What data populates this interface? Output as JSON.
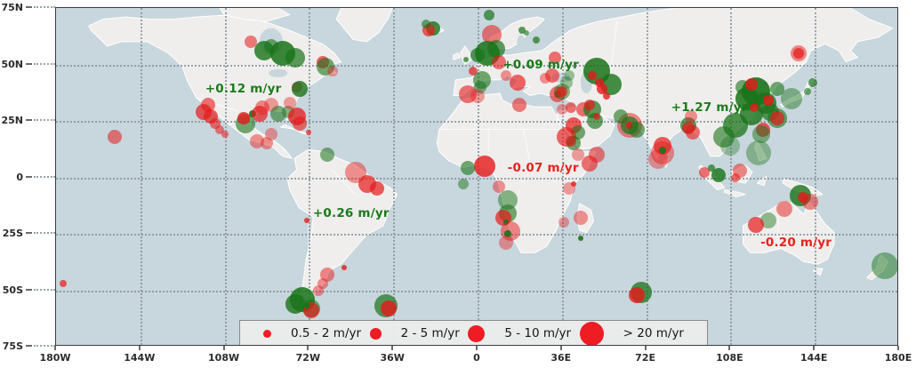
{
  "chart_data": {
    "type": "scatter",
    "subtype": "bubble-map",
    "projection": "world equirectangular",
    "xlim": [
      -180,
      180
    ],
    "ylim": [
      -75,
      75
    ],
    "grid": "dotted",
    "x_ticks": [
      {
        "label": "180W",
        "lon": -180
      },
      {
        "label": "144W",
        "lon": -144
      },
      {
        "label": "108W",
        "lon": -108
      },
      {
        "label": "72W",
        "lon": -72
      },
      {
        "label": "36W",
        "lon": -36
      },
      {
        "label": "0",
        "lon": 0
      },
      {
        "label": "36E",
        "lon": 36
      },
      {
        "label": "72E",
        "lon": 72
      },
      {
        "label": "108E",
        "lon": 108
      },
      {
        "label": "144E",
        "lon": 144
      },
      {
        "label": "180E",
        "lon": 180
      }
    ],
    "y_ticks": [
      {
        "label": "75N",
        "lat": 75
      },
      {
        "label": "50N",
        "lat": 50
      },
      {
        "label": "25N",
        "lat": 25
      },
      {
        "label": "0",
        "lat": 0
      },
      {
        "label": "25S",
        "lat": -25
      },
      {
        "label": "50S",
        "lat": -50
      },
      {
        "label": "75S",
        "lat": -75
      }
    ],
    "legend": {
      "position": "bottom center",
      "dot_color": "#ee1c23",
      "entries": [
        {
          "label": "0.5 - 2 m/yr",
          "d": 9
        },
        {
          "label": "2 - 5 m/yr",
          "d": 13
        },
        {
          "label": "5 - 10 m/yr",
          "d": 19
        },
        {
          "label": "> 20 m/yr",
          "d": 27
        }
      ]
    },
    "annotations": [
      {
        "text": "+0.12 m/yr",
        "lon": -100,
        "lat": 39,
        "color": "green"
      },
      {
        "text": "+0.09 m/yr",
        "lon": 27,
        "lat": 50,
        "color": "green"
      },
      {
        "text": "+1.27 m/yr",
        "lon": 99,
        "lat": 31,
        "color": "green"
      },
      {
        "text": "-0.07 m/yr",
        "lon": 28,
        "lat": 4,
        "color": "red"
      },
      {
        "text": "+0.26 m/yr",
        "lon": -54,
        "lat": -16,
        "color": "green"
      },
      {
        "text": "-0.20 m/yr",
        "lon": 136,
        "lat": -29,
        "color": "red"
      }
    ],
    "annotation_colors": {
      "green": "#1b7a1b",
      "red": "#e8231f"
    },
    "point_colors": {
      "r": "230,25,25",
      "g": "25,115,25"
    },
    "points_format": [
      "lon",
      "lat",
      "radius_px",
      "color (r=red decline, g=green rise)",
      "opacity"
    ],
    "points": [
      [
        -97,
        60,
        7,
        "r",
        0.55
      ],
      [
        -91,
        56,
        11,
        "g",
        0.8
      ],
      [
        -83,
        55,
        14,
        "g",
        0.85
      ],
      [
        -78,
        53,
        11,
        "g",
        0.7
      ],
      [
        -88,
        58,
        8,
        "g",
        0.6
      ],
      [
        -66,
        51,
        7,
        "r",
        0.65
      ],
      [
        -65,
        49,
        10,
        "g",
        0.6
      ],
      [
        -62,
        47,
        6,
        "r",
        0.4
      ],
      [
        -77,
        40,
        6,
        "r",
        0.6
      ],
      [
        -76,
        39,
        9,
        "g",
        0.8
      ],
      [
        -115,
        32,
        8,
        "r",
        0.6
      ],
      [
        -117,
        29,
        9,
        "r",
        0.7
      ],
      [
        -114,
        27,
        8,
        "r",
        0.7
      ],
      [
        -112,
        24,
        6,
        "r",
        0.6
      ],
      [
        -110,
        21,
        5,
        "r",
        0.55
      ],
      [
        -108,
        19,
        4,
        "r",
        0.55
      ],
      [
        -96,
        28,
        4,
        "g",
        0.9
      ],
      [
        -99,
        24,
        11,
        "g",
        0.6
      ],
      [
        -100,
        26,
        7,
        "r",
        0.8
      ],
      [
        -93,
        28,
        9,
        "r",
        0.7
      ],
      [
        -92,
        31,
        8,
        "r",
        0.5
      ],
      [
        -88,
        32,
        8,
        "r",
        0.4
      ],
      [
        -85,
        28,
        9,
        "g",
        0.55
      ],
      [
        -81,
        29,
        7,
        "g",
        0.5
      ],
      [
        -80,
        33,
        7,
        "r",
        0.4
      ],
      [
        -77,
        27,
        10,
        "r",
        0.75
      ],
      [
        -76,
        24,
        8,
        "r",
        0.6
      ],
      [
        -72,
        20,
        3,
        "r",
        0.7
      ],
      [
        -94,
        16,
        8,
        "r",
        0.45
      ],
      [
        -90,
        15,
        7,
        "r",
        0.45
      ],
      [
        -88,
        19,
        7,
        "r",
        0.4
      ],
      [
        -64,
        10,
        8,
        "g",
        0.55
      ],
      [
        -155,
        18,
        8,
        "r",
        0.55
      ],
      [
        -177,
        -47,
        4,
        "r",
        0.7
      ],
      [
        -19,
        66,
        8,
        "g",
        0.8
      ],
      [
        -21,
        65,
        7,
        "r",
        0.7
      ],
      [
        -22,
        68,
        5,
        "g",
        0.6
      ],
      [
        6,
        63,
        11,
        "r",
        0.55
      ],
      [
        5,
        72,
        6,
        "g",
        0.7
      ],
      [
        4,
        55,
        14,
        "g",
        0.85
      ],
      [
        8,
        57,
        10,
        "g",
        0.7
      ],
      [
        9,
        51,
        8,
        "r",
        0.6
      ],
      [
        0,
        54,
        8,
        "g",
        0.7
      ],
      [
        19,
        65,
        4,
        "g",
        0.7
      ],
      [
        21,
        64,
        3,
        "g",
        0.6
      ],
      [
        25,
        61,
        4,
        "g",
        0.7
      ],
      [
        -5,
        52,
        3,
        "g",
        0.7
      ],
      [
        -2,
        47,
        5,
        "r",
        0.7
      ],
      [
        2,
        43,
        10,
        "g",
        0.6
      ],
      [
        1,
        40,
        7,
        "g",
        0.5
      ],
      [
        -4,
        37,
        10,
        "r",
        0.6
      ],
      [
        0,
        36,
        8,
        "r",
        0.4
      ],
      [
        12,
        45,
        6,
        "r",
        0.45
      ],
      [
        17,
        42,
        9,
        "r",
        0.65
      ],
      [
        18,
        32,
        8,
        "r",
        0.55
      ],
      [
        29,
        44,
        6,
        "r",
        0.45
      ],
      [
        34,
        37,
        9,
        "r",
        0.6
      ],
      [
        34,
        37,
        4,
        "r",
        0.9
      ],
      [
        38,
        42,
        7,
        "g",
        0.4
      ],
      [
        45,
        30,
        8,
        "r",
        0.6
      ],
      [
        36,
        30,
        6,
        "r",
        0.4
      ],
      [
        33,
        53,
        7,
        "r",
        0.6
      ],
      [
        32,
        45,
        8,
        "r",
        0.6
      ],
      [
        39,
        45,
        6,
        "g",
        0.4
      ],
      [
        51,
        47,
        15,
        "g",
        0.85
      ],
      [
        57,
        41,
        12,
        "g",
        0.8
      ],
      [
        49,
        45,
        5,
        "r",
        0.8
      ],
      [
        52,
        42,
        5,
        "r",
        0.8
      ],
      [
        53,
        39,
        6,
        "r",
        0.8
      ],
      [
        55,
        36,
        4,
        "r",
        0.8
      ],
      [
        36,
        38,
        9,
        "g",
        0.5
      ],
      [
        36,
        38,
        6,
        "r",
        0.7
      ],
      [
        40,
        31,
        6,
        "r",
        0.6
      ],
      [
        49,
        30,
        10,
        "g",
        0.7
      ],
      [
        48,
        32,
        6,
        "r",
        0.7
      ],
      [
        50,
        25,
        9,
        "g",
        0.65
      ],
      [
        51,
        27,
        4,
        "r",
        0.7
      ],
      [
        41,
        23,
        9,
        "r",
        0.7
      ],
      [
        43,
        20,
        8,
        "g",
        0.6
      ],
      [
        38,
        18,
        11,
        "r",
        0.65
      ],
      [
        41,
        15,
        8,
        "g",
        0.6
      ],
      [
        40,
        16,
        6,
        "r",
        0.6
      ],
      [
        43,
        10,
        7,
        "r",
        0.4
      ],
      [
        51,
        10,
        9,
        "r",
        0.55
      ],
      [
        48,
        6,
        9,
        "r",
        0.6
      ],
      [
        65,
        23,
        14,
        "r",
        0.5
      ],
      [
        65,
        23,
        10,
        "g",
        0.7
      ],
      [
        65,
        23,
        4,
        "r",
        0.9
      ],
      [
        61,
        27,
        8,
        "g",
        0.6
      ],
      [
        68,
        21,
        9,
        "g",
        0.6
      ],
      [
        79,
        14,
        10,
        "r",
        0.7
      ],
      [
        79,
        11,
        13,
        "r",
        0.45
      ],
      [
        77,
        8,
        11,
        "r",
        0.4
      ],
      [
        79,
        12,
        4,
        "g",
        0.9
      ],
      [
        90,
        23,
        9,
        "g",
        0.7
      ],
      [
        90,
        22,
        7,
        "r",
        0.7
      ],
      [
        92,
        20,
        8,
        "r",
        0.6
      ],
      [
        91,
        27,
        7,
        "r",
        0.45
      ],
      [
        113,
        40,
        8,
        "g",
        0.6
      ],
      [
        119,
        38,
        16,
        "g",
        0.9
      ],
      [
        115,
        35,
        13,
        "g",
        0.85
      ],
      [
        123,
        33,
        12,
        "g",
        0.8
      ],
      [
        125,
        29,
        10,
        "g",
        0.7
      ],
      [
        117,
        28,
        13,
        "g",
        0.8
      ],
      [
        110,
        23,
        14,
        "g",
        0.75
      ],
      [
        105,
        18,
        12,
        "g",
        0.6
      ],
      [
        117,
        41,
        7,
        "r",
        0.8
      ],
      [
        124,
        34,
        6,
        "r",
        0.8
      ],
      [
        118,
        31,
        5,
        "r",
        0.8
      ],
      [
        134,
        35,
        12,
        "g",
        0.45
      ],
      [
        128,
        39,
        8,
        "g",
        0.6
      ],
      [
        128,
        26,
        11,
        "g",
        0.6
      ],
      [
        128,
        26,
        8,
        "r",
        0.7
      ],
      [
        122,
        21,
        8,
        "r",
        0.7
      ],
      [
        121,
        19,
        10,
        "g",
        0.5
      ],
      [
        120,
        11,
        14,
        "g",
        0.4
      ],
      [
        108,
        14,
        11,
        "g",
        0.35
      ],
      [
        143,
        42,
        5,
        "g",
        0.7
      ],
      [
        141,
        38,
        4,
        "g",
        0.6
      ],
      [
        137,
        55,
        9,
        "r",
        0.5
      ],
      [
        137,
        55,
        6,
        "r",
        0.7
      ],
      [
        112,
        3,
        8,
        "r",
        0.5
      ],
      [
        103,
        1,
        8,
        "g",
        0.8
      ],
      [
        97,
        2,
        6,
        "r",
        0.6
      ],
      [
        100,
        4,
        4,
        "g",
        0.7
      ],
      [
        110,
        0,
        5,
        "r",
        0.6
      ],
      [
        138,
        -8,
        12,
        "g",
        0.8
      ],
      [
        139,
        -9,
        6,
        "r",
        0.8
      ],
      [
        142,
        -11,
        9,
        "r",
        0.5
      ],
      [
        131,
        -14,
        9,
        "r",
        0.5
      ],
      [
        124,
        -19,
        9,
        "g",
        0.45
      ],
      [
        119,
        -21,
        9,
        "r",
        0.7
      ],
      [
        174,
        -39,
        15,
        "g",
        0.5
      ],
      [
        3,
        5,
        12,
        "r",
        0.8
      ],
      [
        -4,
        4,
        8,
        "g",
        0.6
      ],
      [
        -6,
        -3,
        6,
        "g",
        0.5
      ],
      [
        9,
        -4,
        7,
        "r",
        0.45
      ],
      [
        13,
        -10,
        11,
        "g",
        0.5
      ],
      [
        13,
        -16,
        10,
        "g",
        0.6
      ],
      [
        11,
        -18,
        9,
        "r",
        0.7
      ],
      [
        12,
        -20,
        3,
        "g",
        0.9
      ],
      [
        14,
        -24,
        11,
        "r",
        0.5
      ],
      [
        13,
        -25,
        4,
        "g",
        0.9
      ],
      [
        12,
        -29,
        8,
        "r",
        0.4
      ],
      [
        41,
        -3,
        3,
        "r",
        0.8
      ],
      [
        39,
        -5,
        7,
        "r",
        0.4
      ],
      [
        44,
        -18,
        8,
        "r",
        0.45
      ],
      [
        37,
        -20,
        6,
        "r",
        0.4
      ],
      [
        44,
        -27,
        3,
        "g",
        0.9
      ],
      [
        -52,
        2,
        12,
        "r",
        0.45
      ],
      [
        -47,
        -3,
        10,
        "r",
        0.7
      ],
      [
        -43,
        -5,
        8,
        "r",
        0.7
      ],
      [
        -73,
        -19,
        3,
        "r",
        0.8
      ],
      [
        -57,
        -40,
        3,
        "r",
        0.8
      ],
      [
        -64,
        -43,
        8,
        "r",
        0.5
      ],
      [
        -66,
        -47,
        6,
        "r",
        0.45
      ],
      [
        -68,
        -50,
        6,
        "r",
        0.45
      ],
      [
        -75,
        -54,
        14,
        "g",
        0.85
      ],
      [
        -78,
        -56,
        11,
        "g",
        0.8
      ],
      [
        -71,
        -58,
        10,
        "g",
        0.6
      ],
      [
        -71,
        -59,
        9,
        "r",
        0.7
      ],
      [
        -73,
        -57,
        3,
        "g",
        1
      ],
      [
        -39,
        -57,
        13,
        "g",
        0.7
      ],
      [
        -38,
        -58,
        9,
        "r",
        0.8
      ],
      [
        70,
        -51,
        12,
        "g",
        0.75
      ],
      [
        68,
        -52,
        9,
        "r",
        0.8
      ]
    ]
  }
}
